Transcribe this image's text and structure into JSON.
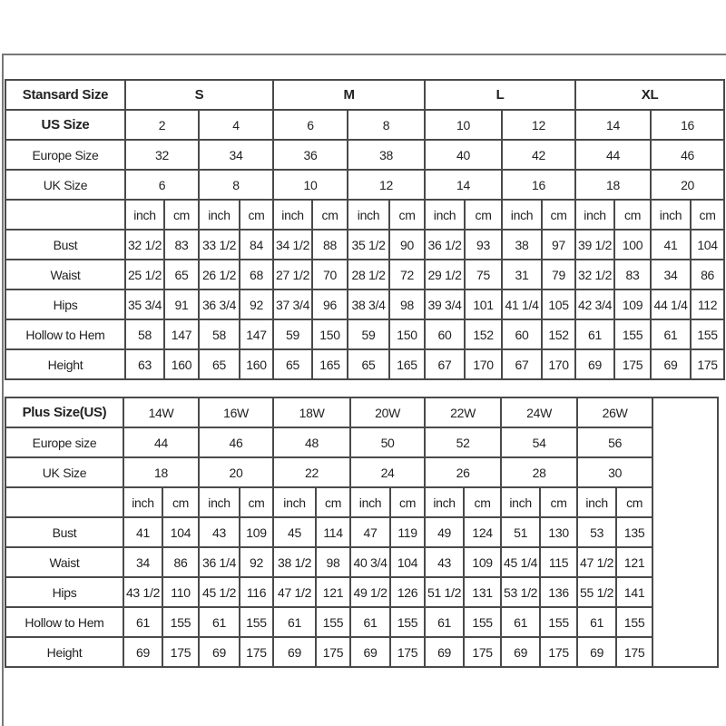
{
  "standard_table": {
    "title": "Stansard Size",
    "size_groups": [
      "S",
      "M",
      "L",
      "XL"
    ],
    "size_rows": [
      {
        "label": "US Size",
        "values": [
          "2",
          "4",
          "6",
          "8",
          "10",
          "12",
          "14",
          "16"
        ]
      },
      {
        "label": "Europe Size",
        "values": [
          "32",
          "34",
          "36",
          "38",
          "40",
          "42",
          "44",
          "46"
        ]
      },
      {
        "label": "UK Size",
        "values": [
          "6",
          "8",
          "10",
          "12",
          "14",
          "16",
          "18",
          "20"
        ]
      }
    ],
    "unit_headers": [
      "inch",
      "cm"
    ],
    "measurements": [
      {
        "label": "Bust",
        "values": [
          "32 1/2",
          "83",
          "33 1/2",
          "84",
          "34 1/2",
          "88",
          "35 1/2",
          "90",
          "36 1/2",
          "93",
          "38",
          "97",
          "39 1/2",
          "100",
          "41",
          "104"
        ]
      },
      {
        "label": "Waist",
        "values": [
          "25 1/2",
          "65",
          "26 1/2",
          "68",
          "27 1/2",
          "70",
          "28 1/2",
          "72",
          "29 1/2",
          "75",
          "31",
          "79",
          "32 1/2",
          "83",
          "34",
          "86"
        ]
      },
      {
        "label": "Hips",
        "values": [
          "35 3/4",
          "91",
          "36 3/4",
          "92",
          "37 3/4",
          "96",
          "38 3/4",
          "98",
          "39 3/4",
          "101",
          "41 1/4",
          "105",
          "42 3/4",
          "109",
          "44 1/4",
          "112"
        ]
      },
      {
        "label": "Hollow to Hem",
        "values": [
          "58",
          "147",
          "58",
          "147",
          "59",
          "150",
          "59",
          "150",
          "60",
          "152",
          "60",
          "152",
          "61",
          "155",
          "61",
          "155"
        ]
      },
      {
        "label": "Height",
        "values": [
          "63",
          "160",
          "65",
          "160",
          "65",
          "165",
          "65",
          "165",
          "67",
          "170",
          "67",
          "170",
          "69",
          "175",
          "69",
          "175"
        ]
      }
    ]
  },
  "plus_table": {
    "title": "Plus Size(US)",
    "sizes": [
      "14W",
      "16W",
      "18W",
      "20W",
      "22W",
      "24W",
      "26W"
    ],
    "size_rows": [
      {
        "label": "Europe size",
        "values": [
          "44",
          "46",
          "48",
          "50",
          "52",
          "54",
          "56"
        ]
      },
      {
        "label": "UK Size",
        "values": [
          "18",
          "20",
          "22",
          "24",
          "26",
          "28",
          "30"
        ]
      }
    ],
    "unit_headers": [
      "inch",
      "cm"
    ],
    "measurements": [
      {
        "label": "Bust",
        "values": [
          "41",
          "104",
          "43",
          "109",
          "45",
          "114",
          "47",
          "119",
          "49",
          "124",
          "51",
          "130",
          "53",
          "135"
        ]
      },
      {
        "label": "Waist",
        "values": [
          "34",
          "86",
          "36 1/4",
          "92",
          "38 1/2",
          "98",
          "40 3/4",
          "104",
          "43",
          "109",
          "45 1/4",
          "115",
          "47 1/2",
          "121"
        ]
      },
      {
        "label": "Hips",
        "values": [
          "43 1/2",
          "110",
          "45 1/2",
          "116",
          "47 1/2",
          "121",
          "49 1/2",
          "126",
          "51 1/2",
          "131",
          "53 1/2",
          "136",
          "55 1/2",
          "141"
        ]
      },
      {
        "label": "Hollow to Hem",
        "values": [
          "61",
          "155",
          "61",
          "155",
          "61",
          "155",
          "61",
          "155",
          "61",
          "155",
          "61",
          "155",
          "61",
          "155"
        ]
      },
      {
        "label": "Height",
        "values": [
          "69",
          "175",
          "69",
          "175",
          "69",
          "175",
          "69",
          "175",
          "69",
          "175",
          "69",
          "175",
          "69",
          "175"
        ]
      }
    ]
  }
}
